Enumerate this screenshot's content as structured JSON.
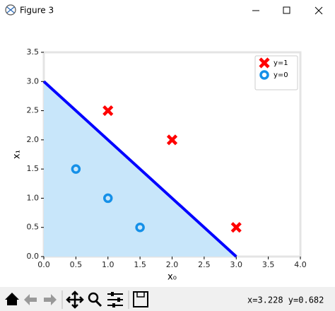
{
  "window": {
    "title": "Figure 3",
    "status": "x=3.228 y=0.682"
  },
  "chart_data": {
    "type": "scatter",
    "xlabel": "x₀",
    "ylabel": "x₁",
    "xlim": [
      0,
      4
    ],
    "ylim": [
      0,
      3.5
    ],
    "xticks": [
      {
        "value": 0,
        "label": "0.0"
      },
      0.5,
      {
        "value": 1,
        "label": "1.0"
      },
      1.5,
      {
        "value": 2,
        "label": "2.0"
      },
      2.5,
      {
        "value": 3,
        "label": "3.0"
      },
      3.5,
      {
        "value": 4,
        "label": "4.0"
      }
    ],
    "yticks": [
      {
        "value": 0,
        "label": "0.0"
      },
      0.5,
      {
        "value": 1,
        "label": "1.0"
      },
      1.5,
      {
        "value": 2,
        "label": "2.0"
      },
      2.5,
      {
        "value": 3,
        "label": "3.0"
      },
      3.5
    ],
    "legend": "upper right",
    "boundary": {
      "x": [
        0,
        3
      ],
      "y": [
        3,
        0
      ],
      "color": "#0000ff",
      "fill": "#c8e6fa"
    },
    "series": [
      {
        "name": "y=1",
        "marker": "x",
        "color": "#ff0000",
        "x": [
          1,
          2,
          3
        ],
        "values": [
          2.5,
          2,
          0.5
        ]
      },
      {
        "name": "y=0",
        "marker": "o",
        "color": "#1590e8",
        "x": [
          0.5,
          1,
          1.5
        ],
        "values": [
          1.5,
          1,
          0.5
        ]
      }
    ]
  }
}
